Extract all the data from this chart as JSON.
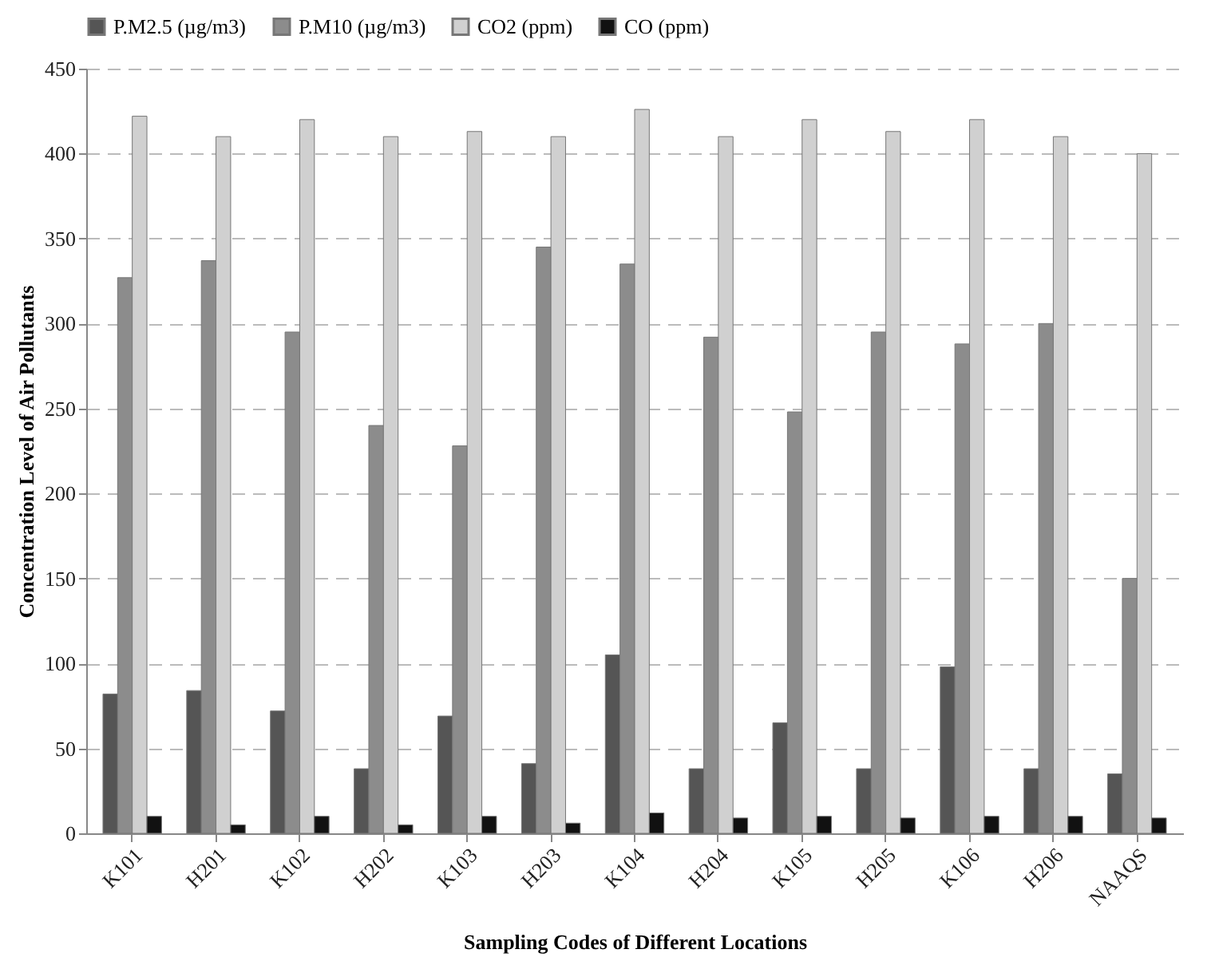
{
  "chart_data": {
    "type": "bar",
    "xlabel": "Sampling Codes  of Different Locations",
    "ylabel": "Concentration  Level of Air Pollutants",
    "categories": [
      "K101",
      "H201",
      "K102",
      "H202",
      "K103",
      "H203",
      "K104",
      "H204",
      "K105",
      "H205",
      "K106",
      "H206",
      "NAAQS"
    ],
    "series": [
      {
        "name": "P.M2.5  (µg/m3)",
        "color": "#555555",
        "values": [
          82,
          84,
          72,
          38,
          69,
          41,
          105,
          38,
          65,
          38,
          98,
          38,
          35
        ]
      },
      {
        "name": "P.M10  (µg/m3)",
        "color": "#8c8c8c",
        "values": [
          327,
          337,
          295,
          240,
          228,
          345,
          335,
          292,
          248,
          295,
          288,
          300,
          150
        ]
      },
      {
        "name": "CO2  (ppm)",
        "color": "#d0d0d0",
        "values": [
          422,
          410,
          420,
          410,
          413,
          410,
          426,
          410,
          420,
          413,
          420,
          410,
          400
        ]
      },
      {
        "name": "CO  (ppm)",
        "color": "#111111",
        "values": [
          10,
          5,
          10,
          5,
          10,
          6,
          12,
          9,
          10,
          9,
          10,
          10,
          9
        ]
      }
    ],
    "ylim": [
      0,
      450
    ],
    "yticks": [
      0,
      50,
      100,
      150,
      200,
      250,
      300,
      350,
      400,
      450
    ],
    "grid": "y",
    "legend": "top"
  }
}
